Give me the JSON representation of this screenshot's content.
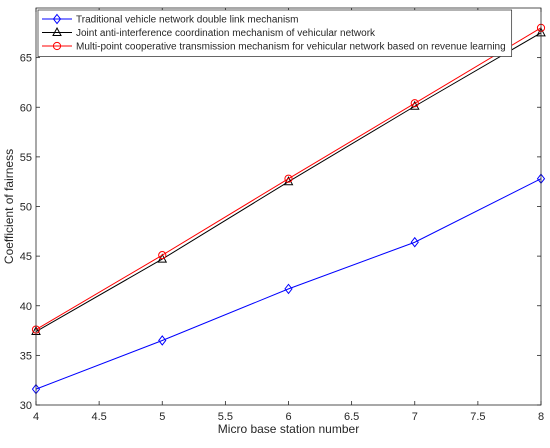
{
  "chart_data": {
    "type": "line",
    "title": "",
    "xlabel": "Micro base station number",
    "ylabel": "Coefficient of fairness",
    "x": [
      4,
      5,
      6,
      7,
      8
    ],
    "xlim": [
      4,
      8
    ],
    "ylim": [
      30,
      70
    ],
    "x_ticks": [
      "4",
      "4.5",
      "5",
      "5.5",
      "6",
      "6.5",
      "7",
      "7.5",
      "8"
    ],
    "y_ticks": [
      "30",
      "35",
      "40",
      "45",
      "50",
      "55",
      "60",
      "65"
    ],
    "grid": false,
    "legend_position": "top-left",
    "series": [
      {
        "name": "Traditional vehicle network double link mechanism",
        "values": [
          31.6,
          36.5,
          41.7,
          46.4,
          52.8
        ],
        "color": "#0000ff",
        "marker": "diamond"
      },
      {
        "name": "Joint anti-interference coordination mechanism of vehicular network",
        "values": [
          37.4,
          44.7,
          52.5,
          60.1,
          67.5
        ],
        "color": "#000000",
        "marker": "triangle"
      },
      {
        "name": "Multi-point cooperative transmission mechanism for vehicular network based on revenue learning",
        "values": [
          37.6,
          45.1,
          52.8,
          60.4,
          68.0
        ],
        "color": "#ff0000",
        "marker": "circle"
      }
    ]
  }
}
